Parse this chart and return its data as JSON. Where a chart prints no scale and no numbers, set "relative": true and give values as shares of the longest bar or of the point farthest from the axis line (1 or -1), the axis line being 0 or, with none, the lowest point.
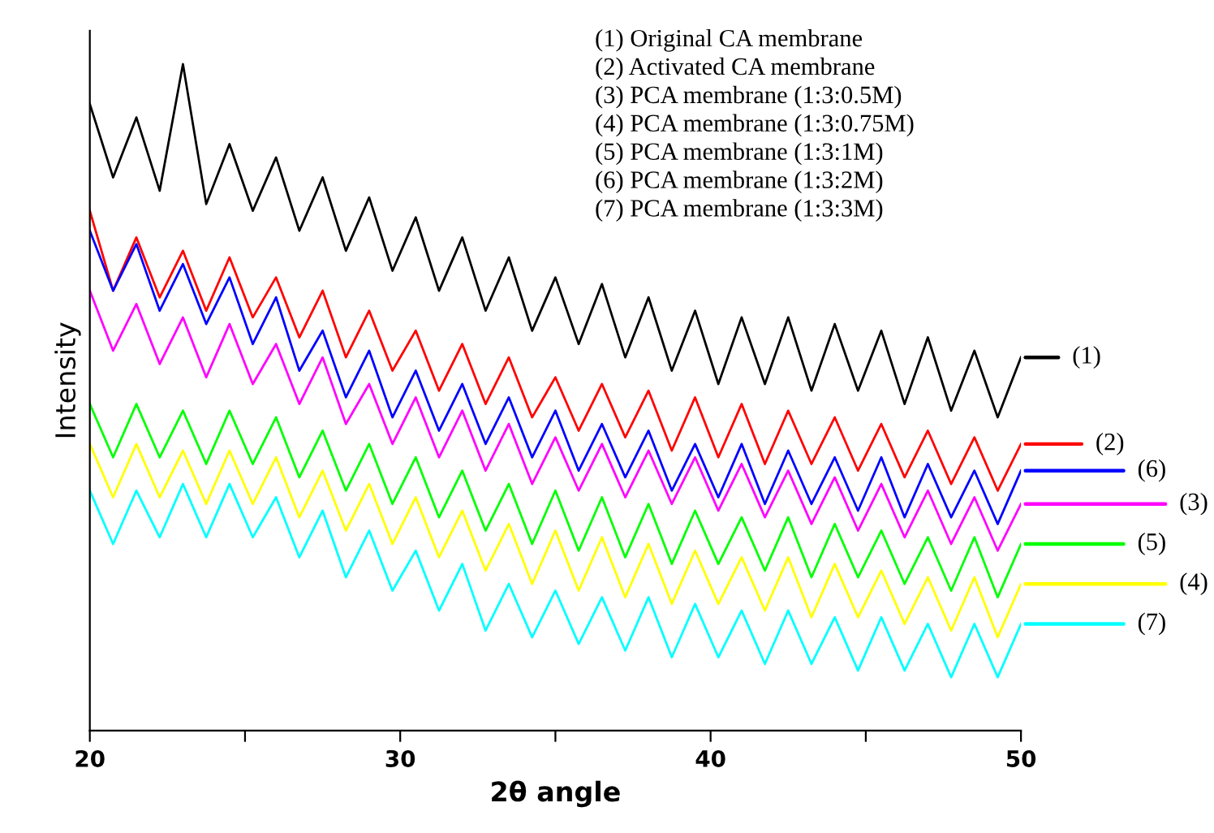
{
  "chart_data": {
    "type": "line",
    "relative": true,
    "xlabel": "2θ angle",
    "ylabel": "Intensity",
    "annotations": [
      "(1) Original CA membrane",
      "(2) Activated CA membrane",
      "(3) PCA membrane (1:3:0.5M)",
      "(4) PCA membrane (1:3:0.75M)",
      "(5) PCA membrane (1:3:1M)",
      "(6) PCA membrane (1:3:2M)",
      "(7) PCA membrane (1:3:3M)"
    ],
    "x": [
      20,
      20.75,
      21.5,
      22.25,
      23,
      23.75,
      24.5,
      25.25,
      26,
      26.75,
      27.5,
      28.25,
      29,
      29.75,
      30.5,
      31.25,
      32,
      32.75,
      33.5,
      34.25,
      35,
      35.75,
      36.5,
      37.25,
      38,
      38.75,
      39.5,
      40.25,
      41,
      41.75,
      42.5,
      43.25,
      44,
      44.75,
      45.5,
      46.25,
      47,
      47.75,
      48.5,
      49.25,
      50
    ],
    "xlim": [
      20,
      50
    ],
    "xticks": [
      20,
      {
        "value": 25,
        "label": null
      },
      30,
      {
        "value": 35,
        "label": null
      },
      40,
      {
        "value": 45,
        "label": null
      },
      50
    ],
    "tick_labels": "x",
    "grid": false,
    "legend": "right",
    "marker": "none",
    "line_style": "solid",
    "series": [
      {
        "name": "(1)",
        "color": "#000000",
        "values": [
          0.94,
          0.83,
          0.92,
          0.81,
          1.0,
          0.79,
          0.88,
          0.78,
          0.86,
          0.75,
          0.83,
          0.72,
          0.8,
          0.69,
          0.77,
          0.66,
          0.74,
          0.63,
          0.71,
          0.6,
          0.68,
          0.58,
          0.67,
          0.56,
          0.65,
          0.54,
          0.63,
          0.52,
          0.62,
          0.52,
          0.62,
          0.51,
          0.61,
          0.51,
          0.6,
          0.49,
          0.59,
          0.48,
          0.57,
          0.47,
          0.56
        ]
      },
      {
        "name": "(2)",
        "color": "#ff0000",
        "values": [
          0.78,
          0.66,
          0.74,
          0.65,
          0.72,
          0.63,
          0.71,
          0.62,
          0.68,
          0.59,
          0.66,
          0.56,
          0.63,
          0.54,
          0.6,
          0.51,
          0.58,
          0.49,
          0.56,
          0.47,
          0.53,
          0.45,
          0.52,
          0.44,
          0.51,
          0.42,
          0.5,
          0.41,
          0.49,
          0.4,
          0.48,
          0.4,
          0.47,
          0.39,
          0.46,
          0.38,
          0.45,
          0.37,
          0.44,
          0.36,
          0.43
        ]
      },
      {
        "name": "(6)",
        "color": "#0000ff",
        "values": [
          0.75,
          0.66,
          0.73,
          0.63,
          0.7,
          0.61,
          0.68,
          0.58,
          0.65,
          0.54,
          0.6,
          0.5,
          0.57,
          0.47,
          0.54,
          0.45,
          0.52,
          0.43,
          0.5,
          0.41,
          0.48,
          0.39,
          0.46,
          0.38,
          0.45,
          0.36,
          0.43,
          0.35,
          0.43,
          0.34,
          0.42,
          0.34,
          0.41,
          0.33,
          0.41,
          0.32,
          0.4,
          0.32,
          0.39,
          0.31,
          0.39
        ]
      },
      {
        "name": "(3)",
        "color": "#ff00ff",
        "values": [
          0.66,
          0.57,
          0.64,
          0.55,
          0.62,
          0.53,
          0.61,
          0.52,
          0.58,
          0.49,
          0.56,
          0.46,
          0.52,
          0.43,
          0.5,
          0.41,
          0.48,
          0.39,
          0.46,
          0.37,
          0.44,
          0.36,
          0.43,
          0.35,
          0.42,
          0.34,
          0.41,
          0.33,
          0.4,
          0.32,
          0.39,
          0.31,
          0.38,
          0.3,
          0.37,
          0.29,
          0.36,
          0.28,
          0.35,
          0.27,
          0.34
        ]
      },
      {
        "name": "(5)",
        "color": "#00ff00",
        "values": [
          0.49,
          0.41,
          0.49,
          0.41,
          0.48,
          0.4,
          0.48,
          0.4,
          0.47,
          0.38,
          0.45,
          0.36,
          0.43,
          0.34,
          0.41,
          0.32,
          0.39,
          0.3,
          0.37,
          0.28,
          0.36,
          0.27,
          0.35,
          0.26,
          0.34,
          0.25,
          0.33,
          0.25,
          0.32,
          0.24,
          0.32,
          0.23,
          0.31,
          0.23,
          0.3,
          0.22,
          0.29,
          0.21,
          0.29,
          0.2,
          0.28
        ]
      },
      {
        "name": "(4)",
        "color": "#ffff00",
        "values": [
          0.43,
          0.35,
          0.43,
          0.35,
          0.42,
          0.34,
          0.42,
          0.34,
          0.41,
          0.32,
          0.39,
          0.3,
          0.37,
          0.28,
          0.35,
          0.26,
          0.33,
          0.24,
          0.31,
          0.22,
          0.3,
          0.21,
          0.29,
          0.2,
          0.28,
          0.19,
          0.27,
          0.19,
          0.26,
          0.18,
          0.26,
          0.17,
          0.25,
          0.17,
          0.24,
          0.16,
          0.23,
          0.15,
          0.23,
          0.14,
          0.22
        ]
      },
      {
        "name": "(7)",
        "color": "#00ffff",
        "values": [
          0.36,
          0.28,
          0.36,
          0.29,
          0.37,
          0.29,
          0.37,
          0.29,
          0.35,
          0.26,
          0.33,
          0.23,
          0.3,
          0.21,
          0.27,
          0.18,
          0.25,
          0.15,
          0.22,
          0.14,
          0.21,
          0.13,
          0.2,
          0.12,
          0.2,
          0.11,
          0.19,
          0.11,
          0.18,
          0.1,
          0.18,
          0.1,
          0.17,
          0.09,
          0.17,
          0.09,
          0.16,
          0.08,
          0.16,
          0.08,
          0.16
        ]
      }
    ]
  }
}
